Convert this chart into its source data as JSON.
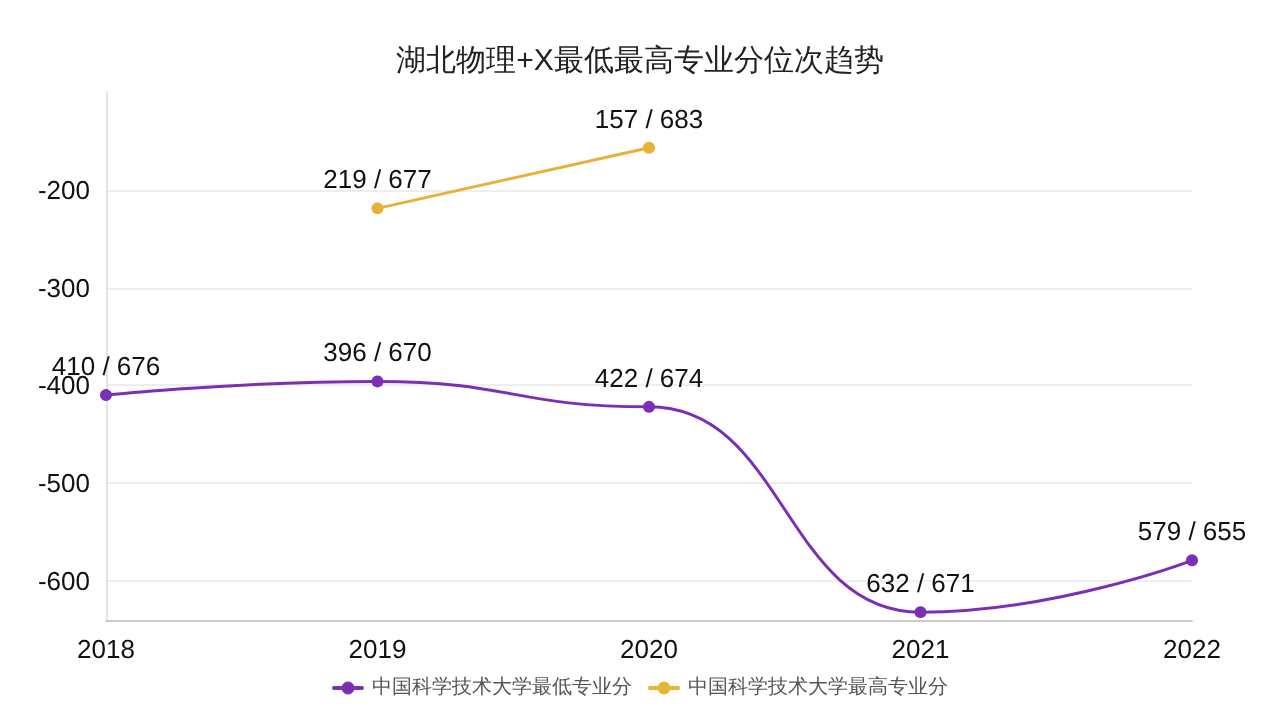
{
  "chart_data": {
    "type": "line",
    "title": "湖北物理+X最低最高专业分位次趋势",
    "categories": [
      "2018",
      "2019",
      "2020",
      "2021",
      "2022"
    ],
    "series": [
      {
        "name": "中国科学技术大学最低专业分",
        "color": "#7b2fb5",
        "values": [
          -410,
          -396,
          -422,
          -632,
          -579
        ]
      },
      {
        "name": "中国科学技术大学最高专业分",
        "color": "#e6b23a",
        "values": [
          null,
          -219,
          -157,
          null,
          null
        ]
      }
    ],
    "annotations": [
      {
        "text": "410 / 676",
        "x": "2018",
        "y": -410
      },
      {
        "text": "396 / 670",
        "x": "2019",
        "y": -396
      },
      {
        "text": "422 / 674",
        "x": "2020",
        "y": -422
      },
      {
        "text": "632 / 671",
        "x": "2021",
        "y": -632
      },
      {
        "text": "579 / 655",
        "x": "2022",
        "y": -579
      },
      {
        "text": "219 / 677",
        "x": "2019",
        "y": -219
      },
      {
        "text": "157 / 683",
        "x": "2020",
        "y": -157
      }
    ],
    "ylim": [
      -640,
      -100
    ],
    "yticks": [
      -600,
      -500,
      -400,
      -300,
      -200
    ],
    "grid": "y",
    "legend": "bottom",
    "marker": "circle",
    "line_style": "solid"
  }
}
